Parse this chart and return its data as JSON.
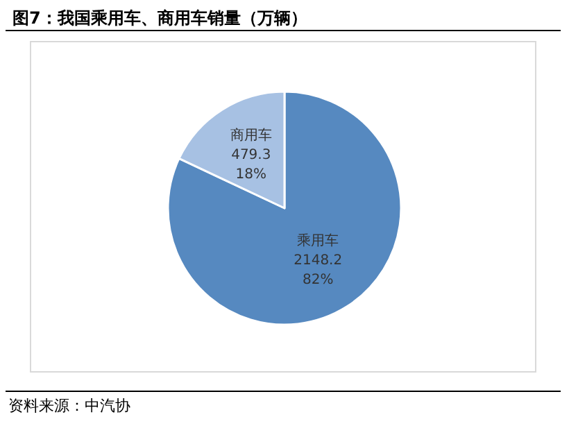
{
  "chart_data": {
    "type": "pie",
    "title": "图7：我国乘用车、商用车销量（万辆）",
    "categories": [
      "乘用车",
      "商用车"
    ],
    "values": [
      82,
      18
    ],
    "colors": [
      "#5689c0",
      "#a7c1e3"
    ],
    "value_labels": [
      "2148.2\n82%",
      "479.3\n18%"
    ],
    "legend": false,
    "annotations": [
      "资料来源：中汽协"
    ]
  }
}
